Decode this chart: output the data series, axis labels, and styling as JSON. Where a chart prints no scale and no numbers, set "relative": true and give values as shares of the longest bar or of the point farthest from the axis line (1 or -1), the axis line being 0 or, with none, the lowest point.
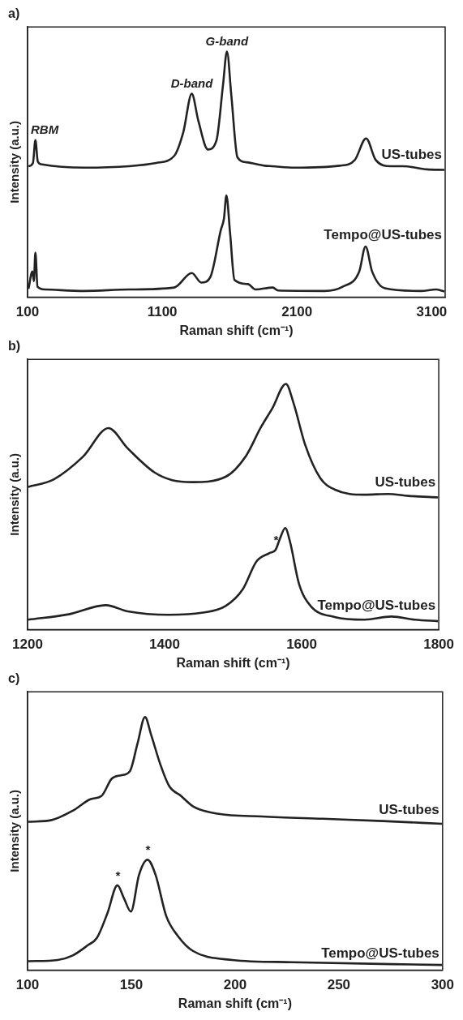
{
  "chart_data": [
    {
      "type": "line",
      "title": "a)",
      "xlabel": "Raman shift (cm⁻¹)",
      "ylabel": "Intensity (a.u.)",
      "relative": true,
      "xlim": [
        100,
        3200
      ],
      "xticks": [
        100,
        1100,
        2100,
        3100
      ],
      "grid": false,
      "legend": false,
      "marker": "none",
      "line_style": "solid",
      "annotations": [
        {
          "text": "RBM",
          "x": 158,
          "y": 0.639
        },
        {
          "text": "D-band",
          "x": 1319,
          "y": 0.828
        },
        {
          "text": "G-band",
          "x": 1580,
          "y": 1
        }
      ],
      "series": [
        {
          "name": "US-tubes",
          "color": "#222222",
          "x": [
            107,
            140,
            158,
            176,
            207,
            520,
            854,
            1055,
            1189,
            1256,
            1319,
            1368,
            1439,
            1502,
            1551,
            1580,
            1613,
            1658,
            1725,
            1859,
            1915,
            2082,
            2417,
            2529,
            2613,
            2685,
            2796,
            2886,
            3064,
            3194
          ],
          "values": [
            0.533,
            0.546,
            0.639,
            0.552,
            0.54,
            0.527,
            0.533,
            0.546,
            0.575,
            0.671,
            0.828,
            0.717,
            0.601,
            0.637,
            0.864,
            1,
            0.819,
            0.569,
            0.549,
            0.535,
            0.533,
            0.527,
            0.535,
            0.558,
            0.646,
            0.558,
            0.533,
            0.533,
            0.52,
            0.518
          ]
        },
        {
          "name": "Tempo@US-tubes",
          "color": "#222222",
          "x": [
            107,
            136,
            147,
            158,
            174,
            229,
            520,
            854,
            1189,
            1319,
            1390,
            1457,
            1535,
            1558,
            1576,
            1603,
            1636,
            1736,
            1792,
            1921,
            1959,
            2305,
            2439,
            2562,
            2609,
            2658,
            2752,
            3020,
            3131,
            3194
          ],
          "values": [
            0.034,
            0.104,
            0.065,
            0.181,
            0.042,
            0.031,
            0.025,
            0.031,
            0.039,
            0.098,
            0.059,
            0.082,
            0.274,
            0.32,
            0.414,
            0.263,
            0.07,
            0.053,
            0.031,
            0.039,
            0.027,
            0.025,
            0.042,
            0.104,
            0.206,
            0.104,
            0.036,
            0.025,
            0.031,
            0.023
          ]
        }
      ]
    },
    {
      "type": "line",
      "title": "b)",
      "xlabel": "Raman shift (cm⁻¹)",
      "ylabel": "Intensity (a.u.)",
      "relative": true,
      "xlim": [
        1200,
        1800
      ],
      "xticks": [
        1200,
        1400,
        1600,
        1800
      ],
      "grid": false,
      "legend": false,
      "marker": "none",
      "line_style": "solid",
      "annotations": [
        {
          "text": "*",
          "x": 1562,
          "y": 0.325
        }
      ],
      "series": [
        {
          "name": "US-tubes",
          "color": "#222222",
          "x": [
            1201,
            1238,
            1281,
            1318,
            1346,
            1385,
            1411,
            1441,
            1489,
            1519,
            1540,
            1557,
            1577,
            1588,
            1605,
            1627,
            1648,
            1692,
            1726,
            1756,
            1799
          ],
          "values": [
            0.581,
            0.611,
            0.704,
            0.82,
            0.738,
            0.64,
            0.608,
            0.6,
            0.622,
            0.708,
            0.821,
            0.9,
            1,
            0.923,
            0.753,
            0.617,
            0.57,
            0.549,
            0.552,
            0.544,
            0.538
          ]
        },
        {
          "name": "Tempo@US-tubes",
          "color": "#222222",
          "x": [
            1201,
            1260,
            1314,
            1346,
            1406,
            1454,
            1489,
            1514,
            1534,
            1553,
            1562,
            1568,
            1576,
            1583,
            1596,
            1613,
            1648,
            1692,
            1731,
            1765,
            1799
          ],
          "values": [
            0.04,
            0.062,
            0.099,
            0.074,
            0.06,
            0.068,
            0.096,
            0.164,
            0.277,
            0.311,
            0.325,
            0.368,
            0.413,
            0.357,
            0.187,
            0.096,
            0.051,
            0.04,
            0.053,
            0.04,
            0.034
          ]
        }
      ]
    },
    {
      "type": "line",
      "title": "c)",
      "xlabel": "Raman shift (cm⁻¹)",
      "ylabel": "Intensity (a.u.)",
      "relative": true,
      "xlim": [
        100,
        300
      ],
      "xticks": [
        100,
        150,
        200,
        250,
        300
      ],
      "grid": false,
      "legend": false,
      "marker": "none",
      "line_style": "solid",
      "annotations": [
        {
          "text": "*",
          "x": 143.3,
          "y": 0.335
        },
        {
          "text": "*",
          "x": 157.8,
          "y": 0.436
        }
      ],
      "series": [
        {
          "name": "US-tubes",
          "color": "#222222",
          "x": [
            100.3,
            111.6,
            121.8,
            130.5,
            135.6,
            140.6,
            145,
            149.3,
            153,
            156.6,
            159.5,
            163.9,
            168.2,
            174,
            179.8,
            191.4,
            213.2,
            242.2,
            271.3,
            299.7
          ],
          "values": [
            0.586,
            0.593,
            0.63,
            0.676,
            0.688,
            0.757,
            0.77,
            0.786,
            0.896,
            1,
            0.931,
            0.815,
            0.728,
            0.688,
            0.647,
            0.618,
            0.607,
            0.598,
            0.589,
            0.578
          ]
        },
        {
          "name": "Tempo@US-tubes",
          "color": "#222222",
          "x": [
            100.3,
            114.5,
            121.8,
            129,
            133.4,
            138.5,
            143.3,
            146.5,
            149.8,
            153.7,
            157.8,
            161.7,
            166.8,
            172.6,
            179.8,
            198.7,
            227.7,
            299.7
          ],
          "values": [
            0.035,
            0.04,
            0.058,
            0.098,
            0.127,
            0.225,
            0.335,
            0.283,
            0.231,
            0.376,
            0.436,
            0.376,
            0.214,
            0.133,
            0.075,
            0.04,
            0.031,
            0.02
          ]
        }
      ]
    }
  ]
}
